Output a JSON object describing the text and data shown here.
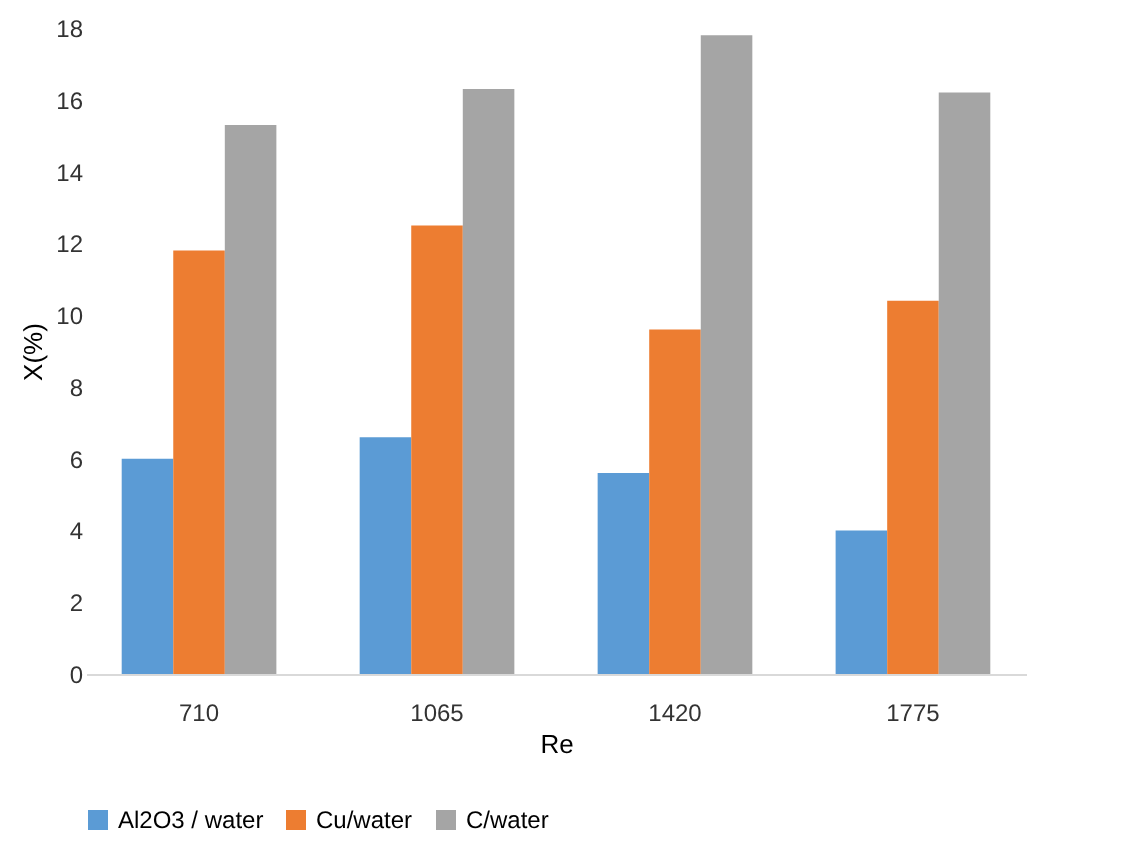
{
  "chart_data": {
    "type": "bar",
    "xlabel": "Re",
    "ylabel": "X(%)",
    "categories": [
      "710",
      "1065",
      "1420",
      "1775"
    ],
    "series": [
      {
        "name": "Al2O3 / water",
        "color": "#5b9bd5",
        "values": [
          6.0,
          6.6,
          5.6,
          4.0
        ]
      },
      {
        "name": "Cu/water",
        "color": "#ed7d31",
        "values": [
          11.8,
          12.5,
          9.6,
          10.4
        ]
      },
      {
        "name": "C/water",
        "color": "#a5a5a5",
        "values": [
          15.3,
          16.3,
          17.8,
          16.2
        ]
      }
    ],
    "ylim": [
      0,
      18
    ],
    "yticks": [
      0,
      2,
      4,
      6,
      8,
      10,
      12,
      14,
      16,
      18
    ],
    "grid": false,
    "legend": "bottom"
  }
}
